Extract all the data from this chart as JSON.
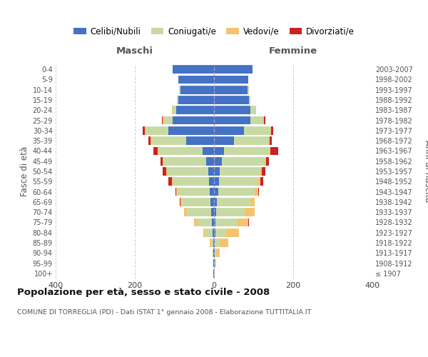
{
  "age_groups": [
    "100+",
    "95-99",
    "90-94",
    "85-89",
    "80-84",
    "75-79",
    "70-74",
    "65-69",
    "60-64",
    "55-59",
    "50-54",
    "45-49",
    "40-44",
    "35-39",
    "30-34",
    "25-29",
    "20-24",
    "15-19",
    "10-14",
    "5-9",
    "0-4"
  ],
  "birth_years": [
    "≤ 1907",
    "1908-1912",
    "1913-1917",
    "1918-1922",
    "1923-1927",
    "1928-1932",
    "1933-1937",
    "1938-1942",
    "1943-1947",
    "1948-1952",
    "1953-1957",
    "1958-1962",
    "1963-1967",
    "1968-1972",
    "1973-1977",
    "1978-1982",
    "1983-1987",
    "1988-1992",
    "1993-1997",
    "1998-2002",
    "2003-2007"
  ],
  "maschi_celibi": [
    1,
    1,
    1,
    2,
    3,
    5,
    7,
    9,
    10,
    13,
    15,
    20,
    28,
    70,
    115,
    105,
    95,
    90,
    85,
    90,
    105
  ],
  "maschi_coniugati": [
    0,
    1,
    2,
    5,
    18,
    38,
    62,
    72,
    83,
    92,
    103,
    108,
    112,
    88,
    58,
    23,
    10,
    4,
    4,
    0,
    0
  ],
  "maschi_vedovi": [
    0,
    0,
    1,
    3,
    6,
    8,
    6,
    3,
    3,
    2,
    2,
    2,
    2,
    2,
    2,
    2,
    1,
    0,
    0,
    0,
    0
  ],
  "maschi_divorziati": [
    0,
    0,
    0,
    0,
    0,
    0,
    0,
    3,
    2,
    8,
    10,
    5,
    12,
    5,
    5,
    2,
    0,
    0,
    0,
    0,
    0
  ],
  "femmine_celibi": [
    0,
    1,
    1,
    2,
    3,
    4,
    6,
    8,
    10,
    13,
    15,
    20,
    25,
    50,
    75,
    92,
    92,
    88,
    85,
    87,
    98
  ],
  "femmine_coniugati": [
    0,
    2,
    5,
    12,
    28,
    53,
    72,
    83,
    93,
    98,
    102,
    108,
    115,
    88,
    68,
    33,
    14,
    4,
    4,
    0,
    0
  ],
  "femmine_vedovi": [
    0,
    3,
    9,
    22,
    32,
    30,
    24,
    12,
    8,
    6,
    4,
    4,
    2,
    2,
    2,
    2,
    0,
    0,
    0,
    0,
    0
  ],
  "femmine_divorziati": [
    0,
    0,
    0,
    0,
    0,
    2,
    0,
    0,
    2,
    7,
    8,
    7,
    20,
    6,
    5,
    2,
    0,
    0,
    0,
    0,
    0
  ],
  "color_celibi": "#4472c4",
  "color_coniugati": "#c8daa4",
  "color_vedovi": "#f5c36e",
  "color_divorziati": "#cc2222",
  "title": "Popolazione per età, sesso e stato civile - 2008",
  "subtitle": "COMUNE DI TORREGLIA (PD) - Dati ISTAT 1° gennaio 2008 - Elaborazione TUTTITALIA.IT",
  "xlabel_left": "Maschi",
  "xlabel_right": "Femmine",
  "ylabel_left": "Fasce di età",
  "ylabel_right": "Anni di nascita",
  "xlim": 400,
  "bg_color": "#ffffff",
  "grid_color": "#cccccc",
  "legend_labels": [
    "Celibi/Nubili",
    "Coniugati/e",
    "Vedovi/e",
    "Divorziati/e"
  ]
}
